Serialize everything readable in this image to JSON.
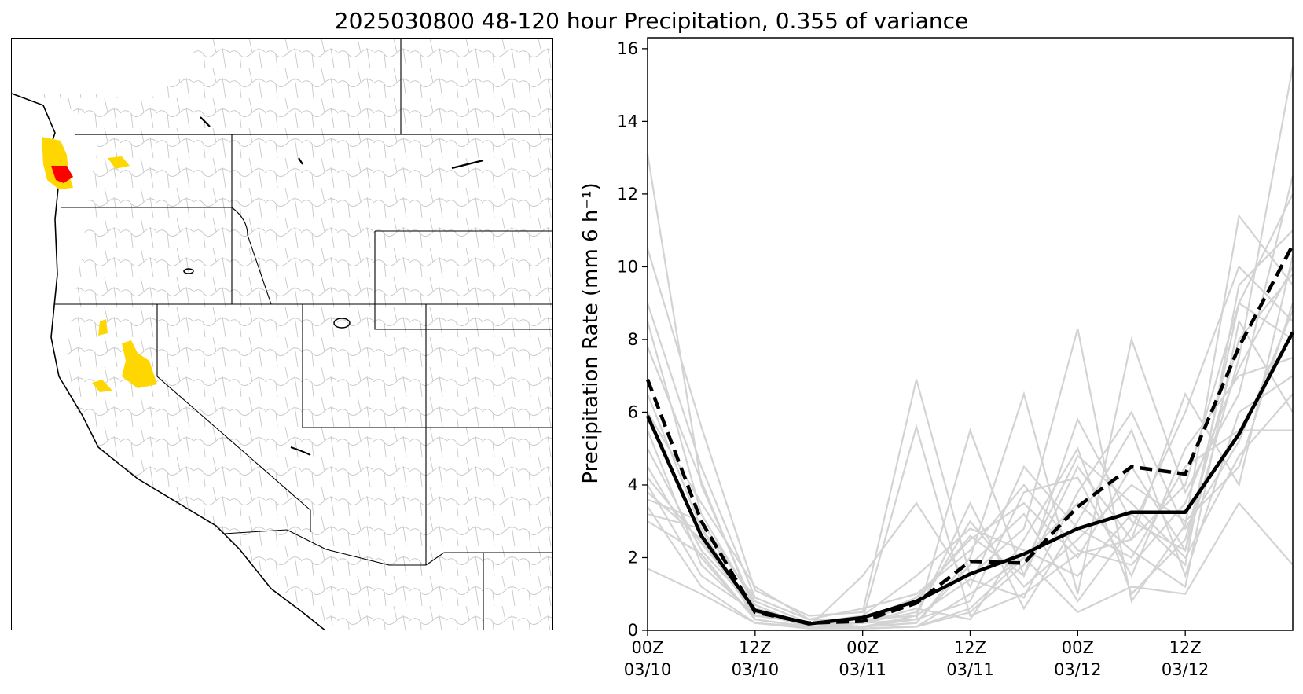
{
  "title": "2025030800 48-120 hour Precipitation, 0.355 of variance",
  "colors": {
    "member": "#d3d3d3",
    "mean": "#000000",
    "highlight_yellow": "#ffd700",
    "highlight_red": "#ff0000",
    "basin_outline": "#bdbdbd",
    "state_border": "#000000"
  },
  "map": {
    "highlighted_regions": [
      {
        "color": "yellow",
        "area": "western Washington / Olympic Peninsula"
      },
      {
        "color": "red",
        "area": "Olympic Peninsula coast"
      },
      {
        "color": "yellow",
        "area": "northern Washington Cascades"
      },
      {
        "color": "yellow",
        "area": "northern California Sierra Nevada"
      },
      {
        "color": "yellow",
        "area": "central California coast"
      }
    ]
  },
  "chart_data": {
    "type": "line",
    "title": "2025030800 48-120 hour Precipitation, 0.355 of variance",
    "ylabel": "Precipitation Rate (mm 6 h⁻¹)",
    "xlabel": "",
    "xlim": [
      0,
      72
    ],
    "ylim": [
      0,
      16.3
    ],
    "grid": false,
    "x": [
      0,
      6,
      12,
      18,
      24,
      30,
      36,
      42,
      48,
      54,
      60,
      66,
      72
    ],
    "xticks": [
      {
        "pos": 0,
        "line1": "00Z",
        "line2": "03/10"
      },
      {
        "pos": 12,
        "line1": "12Z",
        "line2": "03/10"
      },
      {
        "pos": 24,
        "line1": "00Z",
        "line2": "03/11"
      },
      {
        "pos": 36,
        "line1": "12Z",
        "line2": "03/11"
      },
      {
        "pos": 48,
        "line1": "00Z",
        "line2": "03/12"
      },
      {
        "pos": 60,
        "line1": "12Z",
        "line2": "03/12"
      }
    ],
    "yticks": [
      0,
      2,
      4,
      6,
      8,
      10,
      12,
      14,
      16
    ],
    "mean_line": [
      5.9,
      2.6,
      0.55,
      0.18,
      0.35,
      0.8,
      1.55,
      2.1,
      2.8,
      3.25,
      3.25,
      5.4,
      8.2
    ],
    "dashed_line": [
      6.9,
      3.0,
      0.5,
      0.2,
      0.25,
      0.75,
      1.9,
      1.85,
      3.4,
      4.5,
      4.3,
      7.8,
      10.6
    ],
    "members": [
      [
        13.1,
        4.0,
        0.6,
        0.2,
        0.3,
        0.9,
        2.5,
        3.5,
        2.0,
        4.5,
        2.2,
        7.5,
        15.5
      ],
      [
        10.5,
        5.6,
        1.1,
        0.4,
        0.5,
        6.9,
        1.5,
        2.8,
        8.3,
        0.8,
        2.9,
        11.4,
        9.5
      ],
      [
        9.0,
        4.5,
        0.9,
        0.3,
        0.3,
        5.6,
        0.4,
        1.0,
        2.1,
        2.5,
        6.5,
        4.0,
        10.3
      ],
      [
        8.5,
        3.2,
        0.7,
        0.1,
        0.2,
        0.3,
        5.5,
        1.5,
        5.8,
        3.0,
        2.2,
        9.0,
        8.0
      ],
      [
        7.8,
        4.1,
        0.5,
        0.2,
        0.1,
        0.2,
        2.0,
        6.5,
        1.0,
        8.0,
        3.8,
        6.5,
        12.5
      ],
      [
        6.5,
        2.8,
        0.3,
        0.1,
        0.05,
        0.1,
        1.0,
        2.0,
        3.5,
        2.2,
        1.2,
        8.5,
        6.0
      ],
      [
        6.0,
        3.5,
        1.2,
        0.3,
        0.2,
        0.5,
        3.0,
        1.2,
        2.5,
        4.0,
        3.0,
        4.5,
        9.0
      ],
      [
        5.5,
        1.8,
        0.4,
        0.2,
        0.1,
        0.3,
        0.8,
        3.8,
        4.2,
        1.5,
        5.0,
        7.0,
        7.5
      ],
      [
        5.0,
        2.2,
        0.6,
        0.2,
        0.4,
        1.5,
        2.8,
        2.2,
        1.5,
        3.2,
        1.8,
        9.5,
        11.0
      ],
      [
        4.5,
        2.0,
        0.3,
        0.1,
        1.5,
        3.5,
        1.2,
        4.5,
        2.8,
        2.0,
        4.5,
        5.5,
        5.5
      ],
      [
        4.0,
        1.5,
        0.5,
        0.1,
        0.2,
        0.6,
        0.3,
        2.5,
        5.0,
        1.0,
        2.5,
        8.0,
        9.8
      ],
      [
        3.8,
        2.5,
        0.4,
        0.2,
        0.3,
        0.4,
        3.5,
        0.6,
        3.0,
        5.5,
        1.5,
        6.0,
        7.0
      ],
      [
        3.6,
        3.0,
        0.8,
        0.2,
        0.1,
        0.2,
        1.8,
        3.2,
        0.8,
        2.8,
        6.0,
        10.0,
        8.5
      ],
      [
        3.4,
        1.2,
        0.2,
        0.1,
        0.05,
        0.1,
        0.5,
        1.8,
        4.8,
        3.5,
        2.0,
        4.8,
        6.5
      ],
      [
        3.2,
        2.8,
        0.9,
        0.3,
        0.6,
        1.0,
        2.2,
        4.0,
        2.2,
        1.8,
        3.5,
        7.2,
        10.0
      ],
      [
        3.0,
        2.1,
        0.3,
        0.1,
        0.1,
        0.4,
        1.4,
        0.9,
        3.8,
        6.0,
        2.8,
        5.2,
        8.8
      ],
      [
        1.7,
        1.0,
        0.2,
        0.05,
        0.05,
        0.1,
        0.6,
        2.0,
        0.5,
        1.2,
        1.0,
        3.5,
        1.8
      ],
      [
        4.2,
        2.4,
        0.6,
        0.2,
        0.2,
        0.8,
        2.6,
        1.5,
        4.5,
        2.5,
        4.0,
        9.0,
        12.0
      ]
    ]
  }
}
